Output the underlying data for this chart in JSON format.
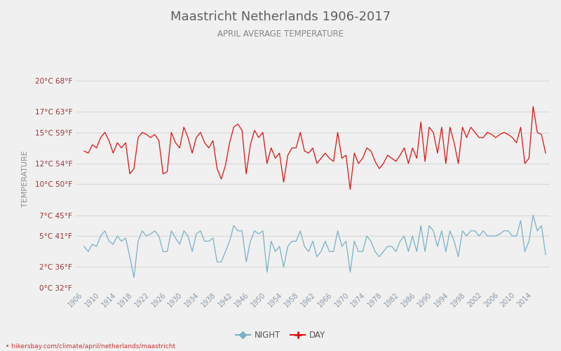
{
  "title": "Maastricht Netherlands 1906-2017",
  "subtitle": "APRIL AVERAGE TEMPERATURE",
  "ylabel": "TEMPERATURE",
  "years": [
    1906,
    1907,
    1908,
    1909,
    1910,
    1911,
    1912,
    1913,
    1914,
    1915,
    1916,
    1917,
    1918,
    1919,
    1920,
    1921,
    1922,
    1923,
    1924,
    1925,
    1926,
    1927,
    1928,
    1929,
    1930,
    1931,
    1932,
    1933,
    1934,
    1935,
    1936,
    1937,
    1938,
    1939,
    1940,
    1941,
    1942,
    1943,
    1944,
    1945,
    1946,
    1947,
    1948,
    1949,
    1950,
    1951,
    1952,
    1953,
    1954,
    1955,
    1956,
    1957,
    1958,
    1959,
    1960,
    1961,
    1962,
    1963,
    1964,
    1965,
    1966,
    1967,
    1968,
    1969,
    1970,
    1971,
    1972,
    1973,
    1974,
    1975,
    1976,
    1977,
    1978,
    1979,
    1980,
    1981,
    1982,
    1983,
    1984,
    1985,
    1986,
    1987,
    1988,
    1989,
    1990,
    1991,
    1992,
    1993,
    1994,
    1995,
    1996,
    1997,
    1998,
    1999,
    2000,
    2001,
    2002,
    2003,
    2004,
    2005,
    2006,
    2007,
    2008,
    2009,
    2010,
    2011,
    2012,
    2013,
    2014,
    2015,
    2016,
    2017
  ],
  "day_temps": [
    13.2,
    13.0,
    13.8,
    13.5,
    14.5,
    15.0,
    14.2,
    13.0,
    14.0,
    13.5,
    14.0,
    11.0,
    11.5,
    14.5,
    15.0,
    14.8,
    14.5,
    14.8,
    14.2,
    11.0,
    11.2,
    15.0,
    14.0,
    13.5,
    15.5,
    14.5,
    13.0,
    14.5,
    15.0,
    14.0,
    13.5,
    14.2,
    11.5,
    10.5,
    11.8,
    14.0,
    15.5,
    15.8,
    15.2,
    11.0,
    13.8,
    15.2,
    14.5,
    15.0,
    12.0,
    13.5,
    12.5,
    13.0,
    10.2,
    12.8,
    13.5,
    13.5,
    15.0,
    13.2,
    13.0,
    13.5,
    12.0,
    12.5,
    13.0,
    12.5,
    12.2,
    15.0,
    12.5,
    12.8,
    9.5,
    13.0,
    12.0,
    12.5,
    13.5,
    13.2,
    12.2,
    11.5,
    12.0,
    12.8,
    12.5,
    12.2,
    12.8,
    13.5,
    12.0,
    13.5,
    12.5,
    16.0,
    12.2,
    15.5,
    15.0,
    13.0,
    15.5,
    12.0,
    15.5,
    14.0,
    12.0,
    15.5,
    14.5,
    15.5,
    15.0,
    14.5,
    14.5,
    15.0,
    14.8,
    14.5,
    14.8,
    15.0,
    14.8,
    14.5,
    14.0,
    15.5,
    12.0,
    12.5,
    17.5,
    15.0,
    14.8,
    13.0
  ],
  "night_temps": [
    4.0,
    3.5,
    4.2,
    4.0,
    5.0,
    5.5,
    4.5,
    4.2,
    5.0,
    4.5,
    4.8,
    3.0,
    1.0,
    4.5,
    5.5,
    5.0,
    5.2,
    5.5,
    5.0,
    3.5,
    3.5,
    5.5,
    4.8,
    4.2,
    5.5,
    5.0,
    3.5,
    5.2,
    5.5,
    4.5,
    4.5,
    4.8,
    2.5,
    2.5,
    3.5,
    4.5,
    6.0,
    5.5,
    5.5,
    2.5,
    4.5,
    5.5,
    5.2,
    5.5,
    1.5,
    4.5,
    3.5,
    4.0,
    2.0,
    4.0,
    4.5,
    4.5,
    5.5,
    4.0,
    3.5,
    4.5,
    3.0,
    3.5,
    4.5,
    3.5,
    3.5,
    5.5,
    4.0,
    4.5,
    1.5,
    4.5,
    3.5,
    3.5,
    5.0,
    4.5,
    3.5,
    3.0,
    3.5,
    4.0,
    4.0,
    3.5,
    4.5,
    5.0,
    3.5,
    5.0,
    3.5,
    6.0,
    3.5,
    6.0,
    5.5,
    4.0,
    5.5,
    3.5,
    5.5,
    4.5,
    3.0,
    5.5,
    5.0,
    5.5,
    5.5,
    5.0,
    5.5,
    5.0,
    5.0,
    5.0,
    5.2,
    5.5,
    5.5,
    5.0,
    5.0,
    6.5,
    3.5,
    4.5,
    7.0,
    5.5,
    6.0,
    3.2
  ],
  "day_color": "#e01010",
  "night_color": "#7ab0c5",
  "bg_color": "#f0f0f0",
  "grid_color": "#d8d8d8",
  "title_color": "#606060",
  "subtitle_color": "#888888",
  "ylabel_color": "#909090",
  "tick_label_color": "#993333",
  "xtick_color": "#8899aa",
  "yticks_c": [
    0,
    2,
    5,
    7,
    10,
    12,
    15,
    17,
    20
  ],
  "yticks_f": [
    32,
    36,
    41,
    45,
    50,
    54,
    59,
    63,
    68
  ],
  "xtick_years": [
    1906,
    1910,
    1914,
    1918,
    1922,
    1926,
    1930,
    1934,
    1938,
    1942,
    1946,
    1950,
    1954,
    1958,
    1962,
    1966,
    1970,
    1974,
    1978,
    1982,
    1986,
    1990,
    1994,
    1998,
    2002,
    2006,
    2010,
    2014
  ],
  "legend_night": "NIGHT",
  "legend_day": "DAY",
  "footer_text": "hikersbay.com/climate/april/netherlands/maastricht"
}
